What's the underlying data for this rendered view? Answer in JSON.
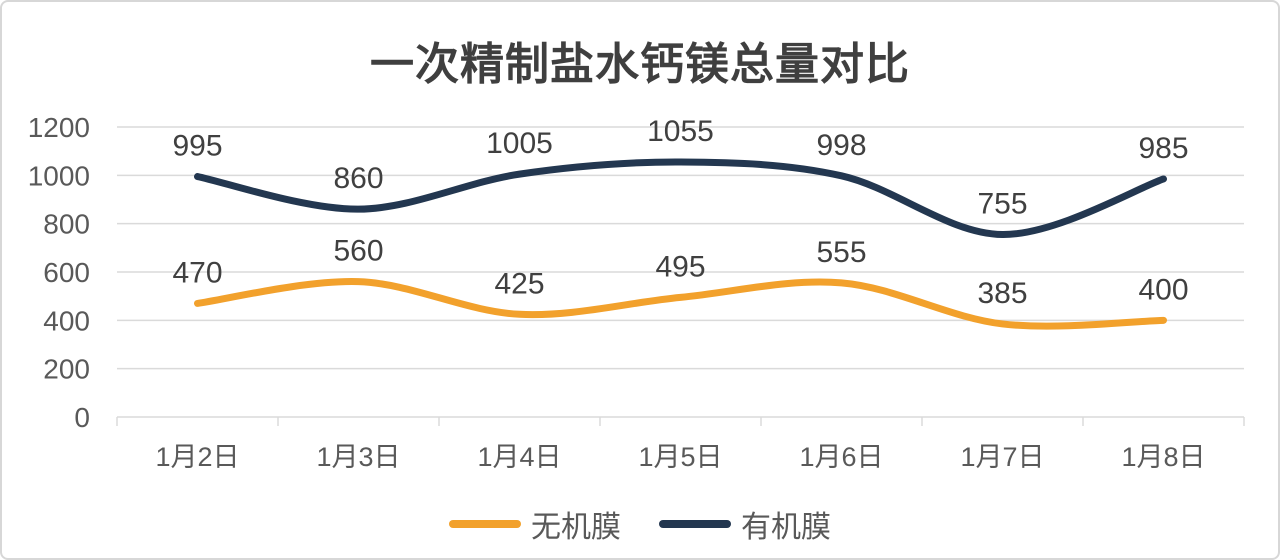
{
  "chart_data": {
    "type": "line",
    "title": "一次精制盐水钙镁总量对比",
    "categories": [
      "1月2日",
      "1月3日",
      "1月4日",
      "1月5日",
      "1月6日",
      "1月7日",
      "1月8日"
    ],
    "series": [
      {
        "name": "无机膜",
        "color": "#F2A12C",
        "values": [
          470,
          560,
          425,
          495,
          555,
          385,
          400
        ]
      },
      {
        "name": "有机膜",
        "color": "#233750",
        "values": [
          995,
          860,
          1005,
          1055,
          998,
          755,
          985
        ]
      }
    ],
    "xlabel": "",
    "ylabel": "",
    "ylim": [
      0,
      1200
    ],
    "ytick_step": 200,
    "ytick_labels": [
      "0",
      "200",
      "400",
      "600",
      "800",
      "1000",
      "1200"
    ],
    "grid": true,
    "smooth": true,
    "data_labels": true,
    "legend_position": "bottom",
    "colors": {
      "grid": "#dadada",
      "axis_text": "#595959",
      "data_label_text": "#404040",
      "title_text": "#3f3f3f",
      "card_border": "#d7d7d7",
      "background": "#ffffff"
    }
  }
}
